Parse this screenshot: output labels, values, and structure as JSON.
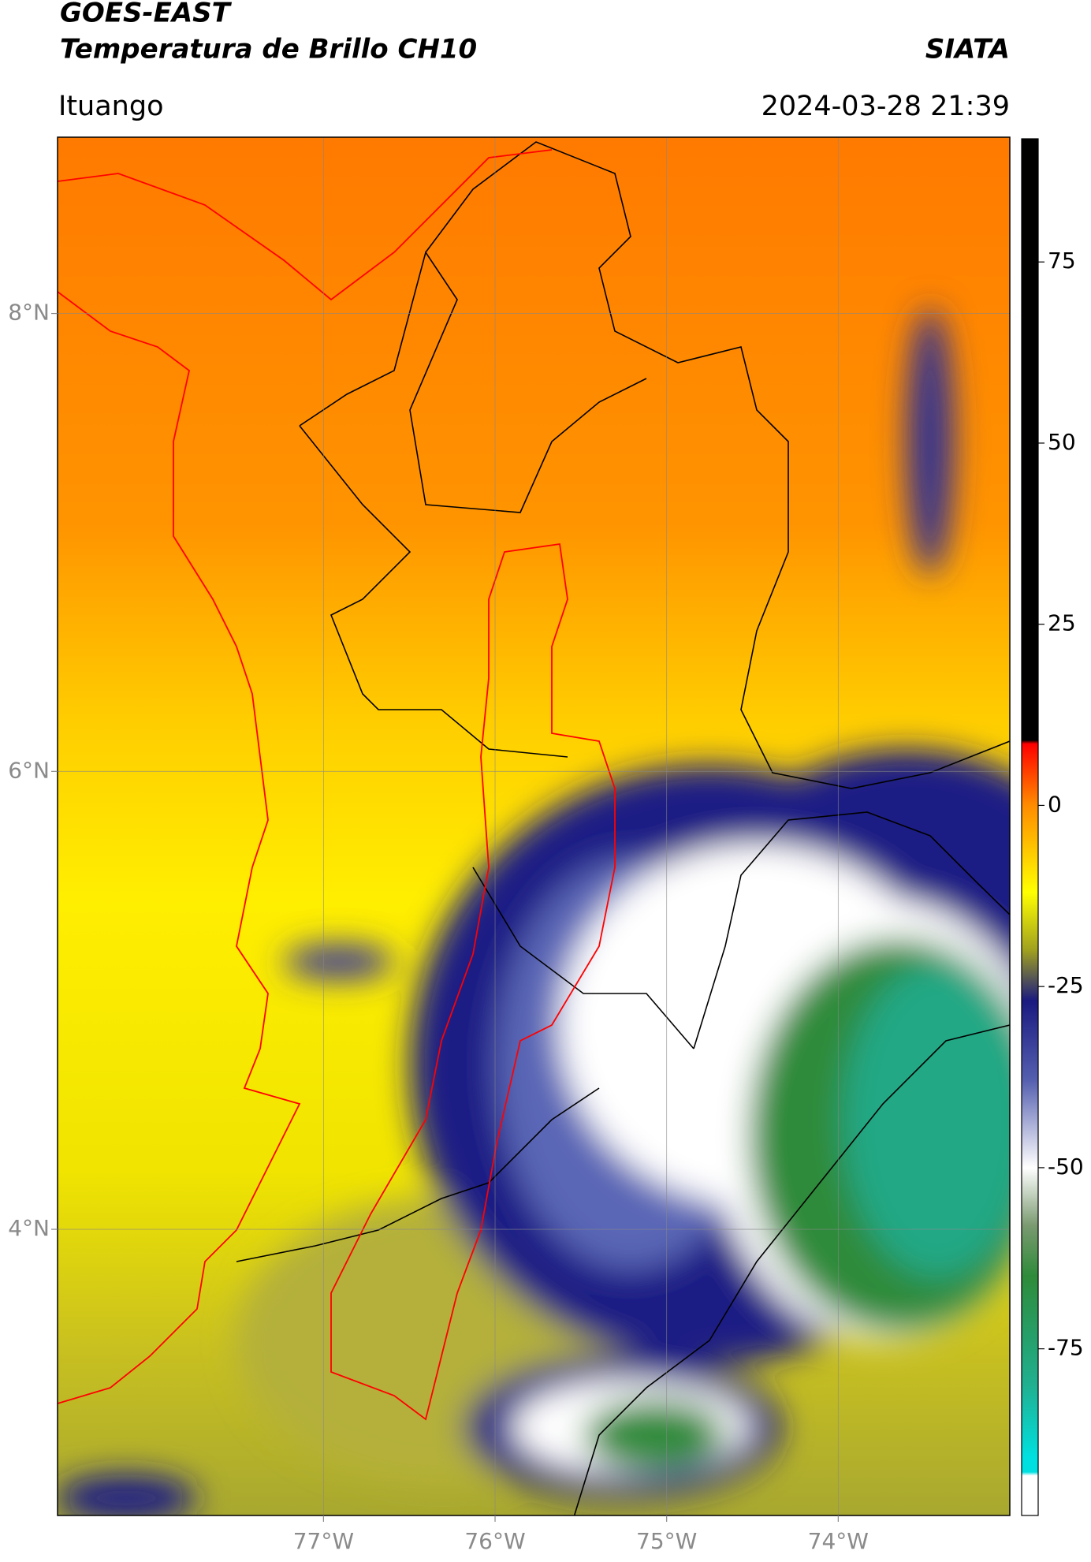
{
  "header": {
    "title": "GOES-EAST",
    "subtitle": "Temperatura de Brillo CH10",
    "brand": "SIATA",
    "location": "Ituango",
    "timestamp": "2024-03-28 21:39"
  },
  "map": {
    "xlim": [
      -78.55,
      -73.0
    ],
    "ylim": [
      2.75,
      8.77
    ],
    "xticks": [
      {
        "value": -77,
        "label": "77°W"
      },
      {
        "value": -76,
        "label": "76°W"
      },
      {
        "value": -75,
        "label": "75°W"
      },
      {
        "value": -74,
        "label": "74°W"
      }
    ],
    "yticks": [
      {
        "value": 8,
        "label": "8°N"
      },
      {
        "value": 6,
        "label": "6°N"
      },
      {
        "value": 4,
        "label": "4°N"
      }
    ],
    "grid": true
  },
  "colorbar": {
    "lim": [
      -98,
      92
    ],
    "ticks": [
      75,
      50,
      25,
      0,
      -25,
      -50,
      -75
    ],
    "stops": [
      {
        "value": 92,
        "color": "#000000"
      },
      {
        "value": 9,
        "color": "#000000"
      },
      {
        "value": 8.5,
        "color": "#ff0000"
      },
      {
        "value": 0,
        "color": "#ff8c00"
      },
      {
        "value": -12,
        "color": "#ffff00"
      },
      {
        "value": -20,
        "color": "#a0a020"
      },
      {
        "value": -27,
        "color": "#1a1a80"
      },
      {
        "value": -38,
        "color": "#5560b0"
      },
      {
        "value": -50,
        "color": "#ffffff"
      },
      {
        "value": -58,
        "color": "#7a9a70"
      },
      {
        "value": -65,
        "color": "#2e8b3a"
      },
      {
        "value": -80,
        "color": "#20b090"
      },
      {
        "value": -90,
        "color": "#00e0e0"
      },
      {
        "value": -92,
        "color": "#00e0e0"
      },
      {
        "value": -92.5,
        "color": "#ffffff"
      },
      {
        "value": -98,
        "color": "#ffffff"
      }
    ]
  }
}
